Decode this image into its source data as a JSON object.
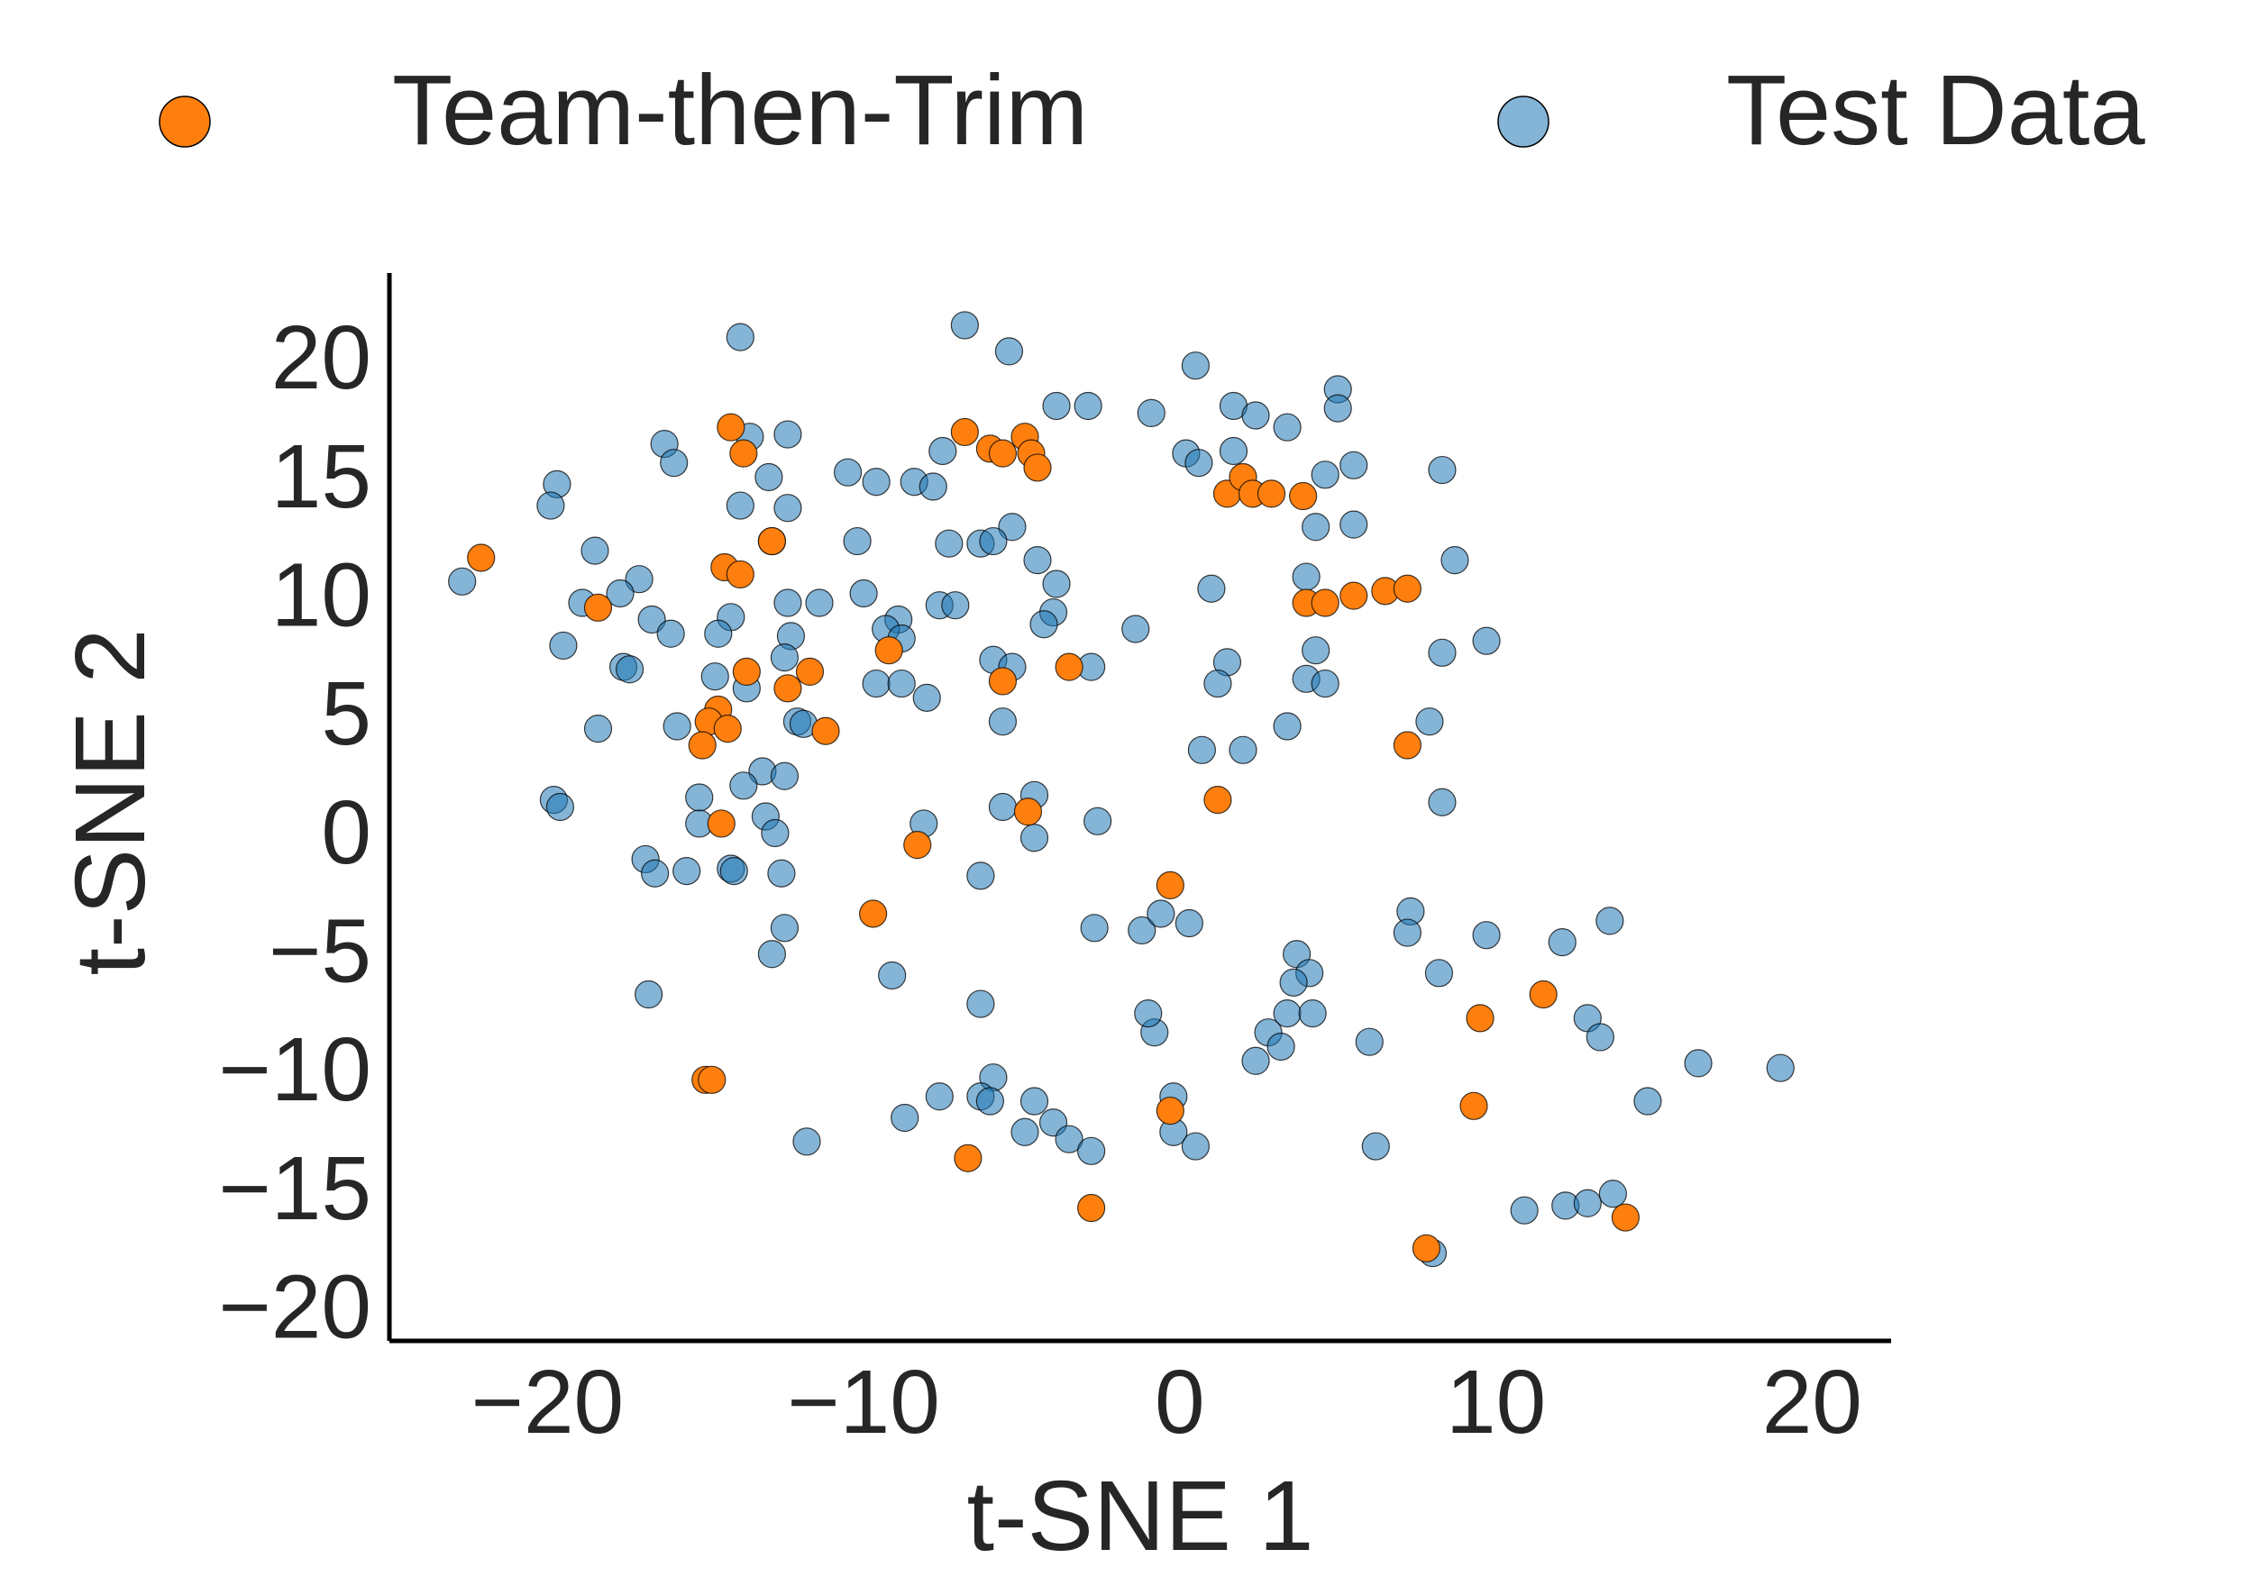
{
  "chart_data": {
    "type": "scatter",
    "title": "",
    "xlabel": "t-SNE 1",
    "ylabel": "t-SNE 2",
    "xlim": [
      -25,
      22.5
    ],
    "ylim": [
      -21.5,
      23.5
    ],
    "xticks": [
      -20,
      -10,
      0,
      10,
      20
    ],
    "yticks": [
      -20,
      -15,
      -10,
      -5,
      0,
      5,
      10,
      15,
      20
    ],
    "xtick_labels": [
      "−20",
      "−10",
      "0",
      "10",
      "20"
    ],
    "ytick_labels": [
      "−20",
      "−15",
      "−10",
      "−5",
      "0",
      "5",
      "10",
      "15",
      "20"
    ],
    "legend": {
      "placement": "top-outside",
      "entries": [
        "Team-then-Trim",
        "Test Data"
      ]
    },
    "grid": false,
    "series": [
      {
        "name": "Test Data",
        "color": "#1f77b4",
        "opacity": 0.55,
        "points": [
          [
            -13.9,
            20.8
          ],
          [
            -6.8,
            21.3
          ],
          [
            -5.4,
            20.2
          ],
          [
            0.5,
            19.6
          ],
          [
            5.0,
            18.6
          ],
          [
            -3.9,
            17.9
          ],
          [
            -2.9,
            17.9
          ],
          [
            -0.9,
            17.6
          ],
          [
            1.7,
            17.9
          ],
          [
            2.4,
            17.5
          ],
          [
            3.4,
            17.0
          ],
          [
            5.0,
            17.8
          ],
          [
            -13.6,
            16.6
          ],
          [
            -12.4,
            16.7
          ],
          [
            -16.3,
            16.3
          ],
          [
            -7.5,
            16.0
          ],
          [
            -16.0,
            15.5
          ],
          [
            0.2,
            15.9
          ],
          [
            0.6,
            15.5
          ],
          [
            1.7,
            16.0
          ],
          [
            4.6,
            15.0
          ],
          [
            5.5,
            15.4
          ],
          [
            8.3,
            15.2
          ],
          [
            -10.5,
            15.1
          ],
          [
            -9.6,
            14.7
          ],
          [
            -8.4,
            14.7
          ],
          [
            -7.8,
            14.5
          ],
          [
            -13.0,
            14.9
          ],
          [
            -19.7,
            14.6
          ],
          [
            -19.9,
            13.7
          ],
          [
            -13.9,
            13.7
          ],
          [
            -12.4,
            13.6
          ],
          [
            -5.3,
            12.8
          ],
          [
            4.3,
            12.8
          ],
          [
            5.5,
            12.9
          ],
          [
            -12.9,
            12.2
          ],
          [
            -10.2,
            12.2
          ],
          [
            -7.3,
            12.1
          ],
          [
            -6.3,
            12.1
          ],
          [
            -5.9,
            12.2
          ],
          [
            -18.5,
            11.8
          ],
          [
            -4.5,
            11.4
          ],
          [
            4.0,
            10.7
          ],
          [
            8.7,
            11.4
          ],
          [
            -17.1,
            10.6
          ],
          [
            -22.7,
            10.5
          ],
          [
            -3.9,
            10.4
          ],
          [
            1.0,
            10.2
          ],
          [
            -17.7,
            10.0
          ],
          [
            -18.9,
            9.6
          ],
          [
            -12.4,
            9.6
          ],
          [
            -11.4,
            9.6
          ],
          [
            -10.0,
            10.0
          ],
          [
            -7.6,
            9.5
          ],
          [
            -7.1,
            9.5
          ],
          [
            -14.2,
            9.0
          ],
          [
            -16.7,
            8.9
          ],
          [
            -8.9,
            8.9
          ],
          [
            -4.0,
            9.2
          ],
          [
            -4.3,
            8.7
          ],
          [
            -9.3,
            8.5
          ],
          [
            -12.3,
            8.2
          ],
          [
            -14.6,
            8.3
          ],
          [
            -8.8,
            8.1
          ],
          [
            -16.1,
            8.3
          ],
          [
            -19.5,
            7.8
          ],
          [
            -1.4,
            8.5
          ],
          [
            4.3,
            7.6
          ],
          [
            8.3,
            7.5
          ],
          [
            9.7,
            8.0
          ],
          [
            -12.5,
            7.3
          ],
          [
            -5.9,
            7.2
          ],
          [
            -5.3,
            6.9
          ],
          [
            1.5,
            7.1
          ],
          [
            -17.6,
            6.9
          ],
          [
            -17.4,
            6.8
          ],
          [
            -14.7,
            6.5
          ],
          [
            -9.6,
            6.2
          ],
          [
            -8.8,
            6.2
          ],
          [
            -2.8,
            6.9
          ],
          [
            1.2,
            6.2
          ],
          [
            4.0,
            6.4
          ],
          [
            4.6,
            6.2
          ],
          [
            -13.7,
            6.0
          ],
          [
            -8.0,
            5.6
          ],
          [
            -12.1,
            4.6
          ],
          [
            -11.9,
            4.5
          ],
          [
            -15.9,
            4.4
          ],
          [
            -18.4,
            4.3
          ],
          [
            -5.6,
            4.6
          ],
          [
            3.4,
            4.4
          ],
          [
            7.9,
            4.6
          ],
          [
            0.7,
            3.4
          ],
          [
            2.0,
            3.4
          ],
          [
            -13.2,
            2.5
          ],
          [
            -12.5,
            2.3
          ],
          [
            -13.8,
            1.9
          ],
          [
            -15.2,
            1.4
          ],
          [
            -19.8,
            1.3
          ],
          [
            -19.6,
            1.0
          ],
          [
            -5.6,
            1.0
          ],
          [
            -4.6,
            1.5
          ],
          [
            8.3,
            1.2
          ],
          [
            -13.1,
            0.6
          ],
          [
            -15.2,
            0.3
          ],
          [
            -8.1,
            0.3
          ],
          [
            -2.6,
            0.4
          ],
          [
            -12.8,
            -0.1
          ],
          [
            -4.6,
            -0.3
          ],
          [
            -16.9,
            -1.2
          ],
          [
            -16.6,
            -1.8
          ],
          [
            -15.6,
            -1.7
          ],
          [
            -14.2,
            -1.6
          ],
          [
            -14.1,
            -1.7
          ],
          [
            -12.6,
            -1.8
          ],
          [
            -6.3,
            -1.9
          ],
          [
            -12.5,
            -4.1
          ],
          [
            -12.9,
            -5.2
          ],
          [
            -2.7,
            -4.1
          ],
          [
            -1.2,
            -4.2
          ],
          [
            -0.6,
            -3.5
          ],
          [
            0.3,
            -3.9
          ],
          [
            7.3,
            -3.4
          ],
          [
            7.2,
            -4.3
          ],
          [
            9.7,
            -4.4
          ],
          [
            3.7,
            -5.2
          ],
          [
            4.1,
            -6.0
          ],
          [
            8.2,
            -6.0
          ],
          [
            12.1,
            -4.7
          ],
          [
            13.6,
            -3.8
          ],
          [
            -9.1,
            -6.1
          ],
          [
            -16.8,
            -6.9
          ],
          [
            -6.3,
            -7.3
          ],
          [
            3.4,
            -7.7
          ],
          [
            3.6,
            -6.4
          ],
          [
            4.2,
            -7.7
          ],
          [
            -0.8,
            -8.5
          ],
          [
            -1.0,
            -7.7
          ],
          [
            2.8,
            -8.5
          ],
          [
            2.4,
            -9.7
          ],
          [
            3.2,
            -9.1
          ],
          [
            6.0,
            -8.9
          ],
          [
            12.9,
            -7.9
          ],
          [
            13.3,
            -8.7
          ],
          [
            16.4,
            -9.8
          ],
          [
            19.0,
            -10.0
          ],
          [
            -5.9,
            -10.4
          ],
          [
            -7.6,
            -11.2
          ],
          [
            -6.3,
            -11.2
          ],
          [
            -6.0,
            -11.4
          ],
          [
            -4.6,
            -11.4
          ],
          [
            -0.2,
            -11.2
          ],
          [
            -8.7,
            -12.1
          ],
          [
            -4.0,
            -12.3
          ],
          [
            -4.9,
            -12.7
          ],
          [
            -3.5,
            -13.0
          ],
          [
            -0.2,
            -12.7
          ],
          [
            0.5,
            -13.3
          ],
          [
            6.2,
            -13.3
          ],
          [
            14.8,
            -11.4
          ],
          [
            -11.8,
            -13.1
          ],
          [
            -2.8,
            -13.5
          ],
          [
            10.9,
            -16.0
          ],
          [
            12.2,
            -15.8
          ],
          [
            12.9,
            -15.7
          ],
          [
            13.7,
            -15.3
          ],
          [
            8.0,
            -17.8
          ]
        ]
      },
      {
        "name": "Team-then-Trim",
        "color": "#ff7f0e",
        "opacity": 1.0,
        "points": [
          [
            -14.2,
            17.0
          ],
          [
            -13.8,
            15.9
          ],
          [
            -6.8,
            16.8
          ],
          [
            -6.0,
            16.1
          ],
          [
            -5.6,
            15.9
          ],
          [
            -4.9,
            16.6
          ],
          [
            -4.7,
            15.9
          ],
          [
            -4.5,
            15.3
          ],
          [
            1.5,
            14.2
          ],
          [
            2.0,
            14.9
          ],
          [
            2.3,
            14.2
          ],
          [
            2.9,
            14.2
          ],
          [
            3.9,
            14.1
          ],
          [
            -22.1,
            11.5
          ],
          [
            -14.4,
            11.1
          ],
          [
            -13.9,
            10.8
          ],
          [
            -12.9,
            12.2
          ],
          [
            4.0,
            9.6
          ],
          [
            4.6,
            9.6
          ],
          [
            5.5,
            9.9
          ],
          [
            6.5,
            10.1
          ],
          [
            7.2,
            10.2
          ],
          [
            -18.4,
            9.4
          ],
          [
            -9.2,
            7.6
          ],
          [
            -3.5,
            6.9
          ],
          [
            -13.7,
            6.7
          ],
          [
            -11.7,
            6.7
          ],
          [
            -12.4,
            6.0
          ],
          [
            -5.6,
            6.3
          ],
          [
            -14.6,
            5.1
          ],
          [
            -14.9,
            4.6
          ],
          [
            -15.1,
            3.6
          ],
          [
            -14.3,
            4.3
          ],
          [
            -11.2,
            4.2
          ],
          [
            7.2,
            3.6
          ],
          [
            1.2,
            1.3
          ],
          [
            -4.8,
            0.8
          ],
          [
            -14.5,
            0.3
          ],
          [
            -8.3,
            -0.6
          ],
          [
            -0.3,
            -2.3
          ],
          [
            -9.7,
            -3.5
          ],
          [
            9.5,
            -7.9
          ],
          [
            11.5,
            -6.9
          ],
          [
            -15.0,
            -10.5
          ],
          [
            -14.8,
            -10.5
          ],
          [
            9.3,
            -11.6
          ],
          [
            -0.3,
            -11.8
          ],
          [
            -6.7,
            -13.8
          ],
          [
            -2.8,
            -15.9
          ],
          [
            14.1,
            -16.3
          ],
          [
            7.8,
            -17.6
          ]
        ]
      }
    ]
  }
}
